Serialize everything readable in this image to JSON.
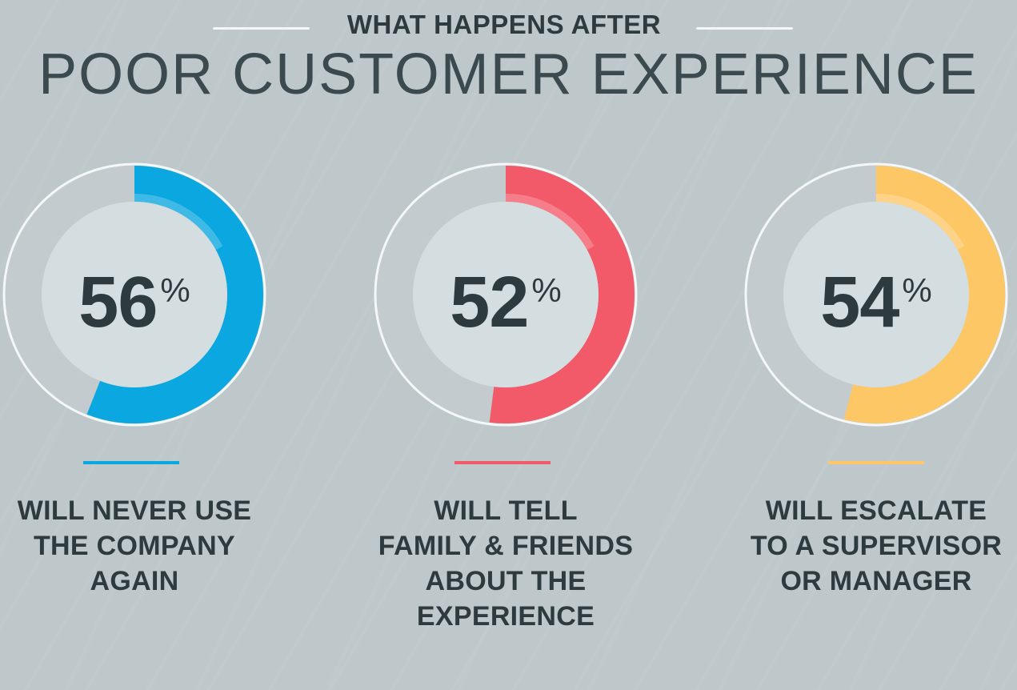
{
  "header": {
    "subtitle": "WHAT HAPPENS AFTER",
    "title": "POOR CUSTOMER EXPERIENCE"
  },
  "colors": {
    "background": "#bec8cb",
    "text": "#2d3a3e",
    "ring_track": "#c3cbce",
    "inner_circle": "#d4dde0",
    "outline": "#f4f7f8"
  },
  "stats": [
    {
      "value": "56",
      "unit": "%",
      "percent": 56,
      "color": "#0aa7e0",
      "label_lines": [
        "WILL NEVER USE",
        "THE COMPANY",
        "AGAIN"
      ]
    },
    {
      "value": "52",
      "unit": "%",
      "percent": 52,
      "color": "#f25a6a",
      "label_lines": [
        "WILL TELL",
        "FAMILY & FRIENDS",
        "ABOUT THE",
        "EXPERIENCE"
      ]
    },
    {
      "value": "54",
      "unit": "%",
      "percent": 54,
      "color": "#fec766",
      "label_lines": [
        "WILL ESCALATE",
        "TO A SUPERVISOR",
        "OR MANAGER"
      ]
    }
  ],
  "chart_data": {
    "type": "pie",
    "subtype": "donut",
    "title": "WHAT HAPPENS AFTER POOR CUSTOMER EXPERIENCE",
    "categories": [
      "WILL NEVER USE THE COMPANY AGAIN",
      "WILL TELL FAMILY & FRIENDS ABOUT THE EXPERIENCE",
      "WILL ESCALATE TO A SUPERVISOR OR MANAGER"
    ],
    "values": [
      56,
      52,
      54
    ],
    "unit": "%",
    "colors": [
      "#0aa7e0",
      "#f25a6a",
      "#fec766"
    ],
    "legend": "none",
    "grid": false
  }
}
